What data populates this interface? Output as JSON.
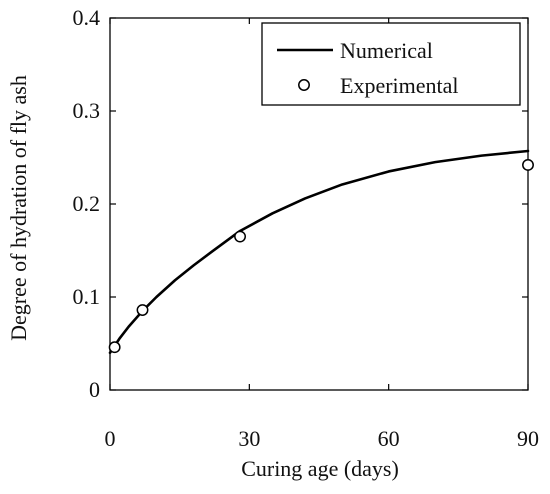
{
  "chart_data": {
    "type": "line",
    "xlabel": "Curing age (days)",
    "ylabel": "Degree of hydration of fly ash",
    "xlim": [
      0,
      90
    ],
    "ylim": [
      0,
      0.4
    ],
    "xticks": [
      0,
      30,
      60,
      90
    ],
    "xtick_labels": [
      "0",
      "30",
      "60",
      "90"
    ],
    "yticks": [
      0,
      0.1,
      0.2,
      0.3,
      0.4
    ],
    "ytick_labels": [
      "0",
      "0.1",
      "0.2",
      "0.3",
      "0.4"
    ],
    "grid": false,
    "legend_position": "top-right",
    "series": [
      {
        "name": "Numerical",
        "kind": "line",
        "color": "#000000",
        "x": [
          0,
          2,
          4,
          7,
          10,
          14,
          18,
          22,
          28,
          35,
          42,
          50,
          60,
          70,
          80,
          90
        ],
        "y": [
          0.04,
          0.055,
          0.068,
          0.085,
          0.1,
          0.118,
          0.134,
          0.149,
          0.171,
          0.19,
          0.206,
          0.221,
          0.235,
          0.245,
          0.252,
          0.257
        ]
      },
      {
        "name": "Experimental",
        "kind": "scatter",
        "marker": "open-circle",
        "color": "#000000",
        "x": [
          1,
          7,
          28,
          90
        ],
        "y": [
          0.046,
          0.086,
          0.165,
          0.242
        ]
      }
    ]
  }
}
